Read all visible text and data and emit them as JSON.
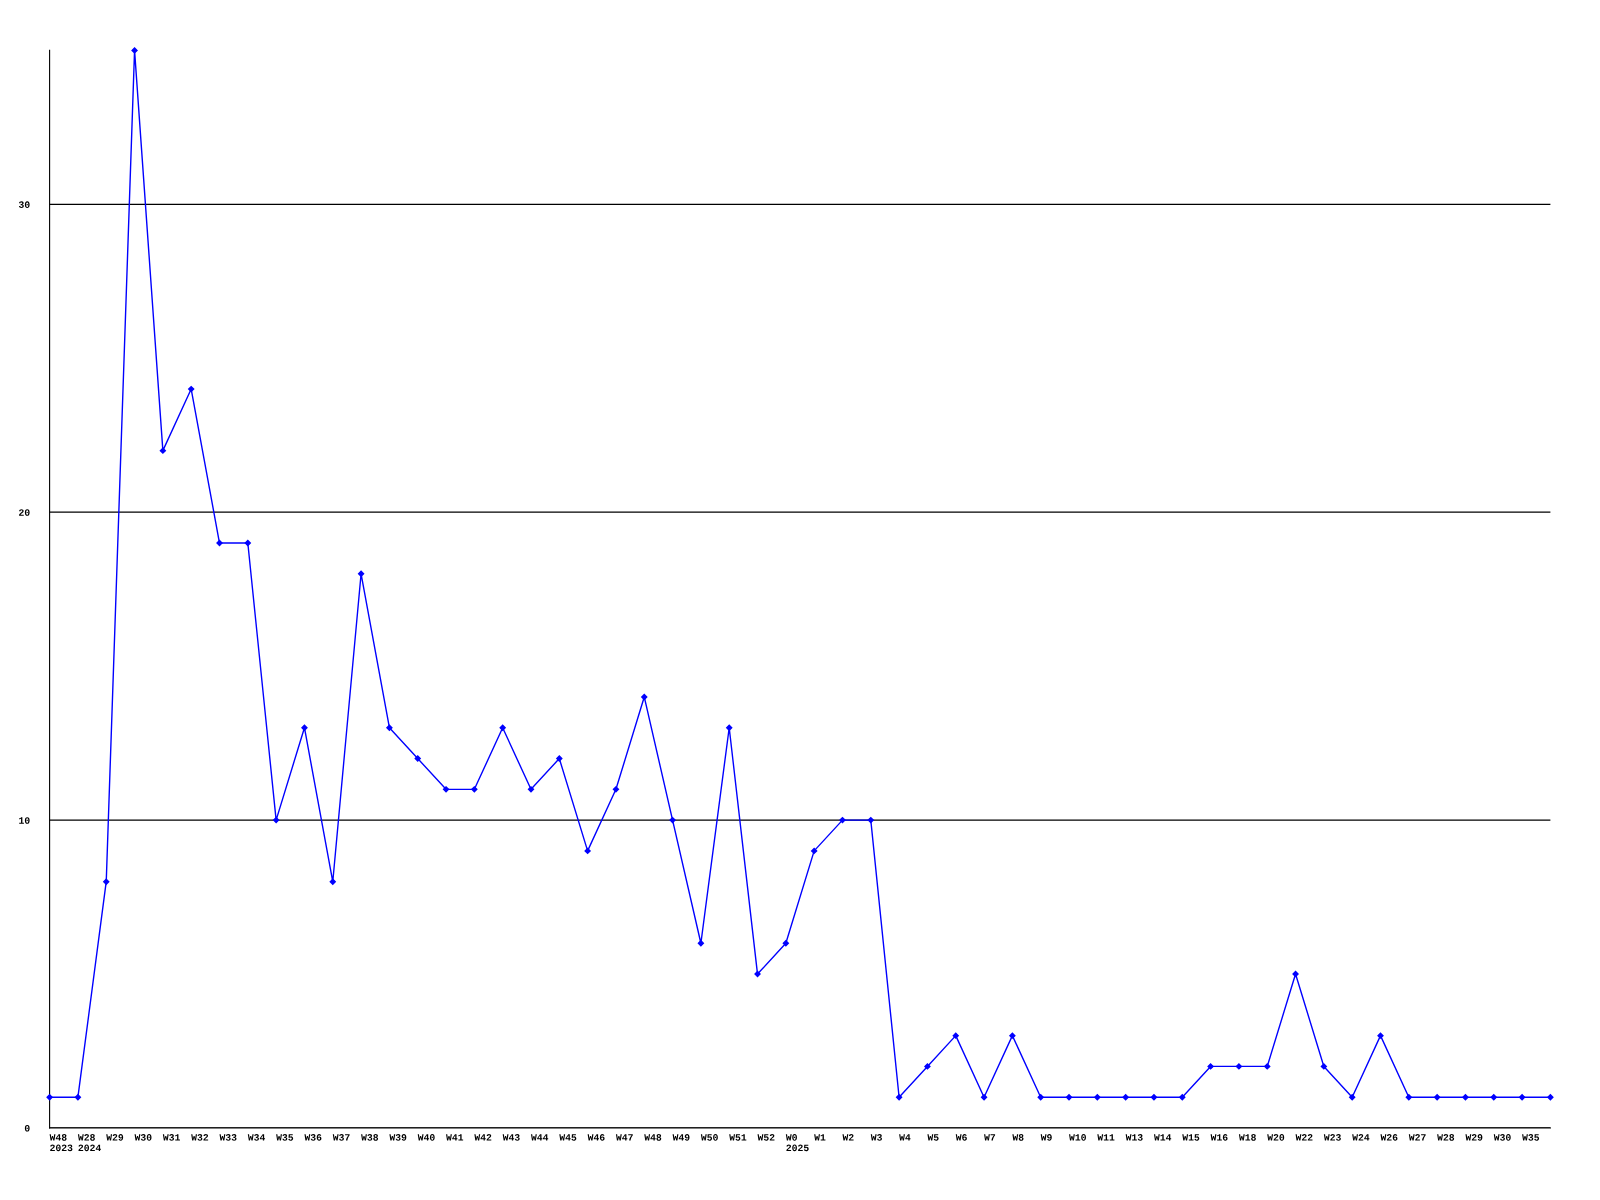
{
  "chart_data": {
    "type": "line",
    "categories": [
      "W48\n2023",
      "W28\n2024",
      "W29",
      "W30",
      "W31",
      "W32",
      "W33",
      "W34",
      "W35",
      "W36",
      "W37",
      "W38",
      "W39",
      "W40",
      "W41",
      "W42",
      "W43",
      "W44",
      "W45",
      "W46",
      "W47",
      "W48",
      "W49",
      "W50",
      "W51",
      "W52",
      "W0\n2025",
      "W1",
      "W2",
      "W3",
      "W4",
      "W5",
      "W6",
      "W7",
      "W8",
      "W9",
      "W10",
      "W11",
      "W13",
      "W14",
      "W15",
      "W16",
      "W18",
      "W20",
      "W22",
      "W23",
      "W24",
      "W26",
      "W27",
      "W28",
      "W29",
      "W30",
      "W35",
      null
    ],
    "series": [
      {
        "color": "#0000ff",
        "values": [
          1,
          1,
          8,
          35,
          22,
          24,
          19,
          19,
          10,
          13,
          8,
          18,
          13,
          12,
          11,
          11,
          13,
          11,
          12,
          9,
          11,
          14,
          10,
          6,
          13,
          5,
          6,
          9,
          10,
          10,
          1,
          2,
          3,
          1,
          3,
          1,
          1,
          1,
          1,
          1,
          1,
          2,
          2,
          2,
          5,
          2,
          1,
          3,
          1,
          1,
          1,
          1,
          1,
          1
        ]
      }
    ],
    "ylim": [
      0,
      35
    ],
    "yticks": [
      0,
      10,
      20,
      30
    ],
    "grid": "y",
    "marker": "diamond",
    "line_style": "solid",
    "legend": false
  }
}
